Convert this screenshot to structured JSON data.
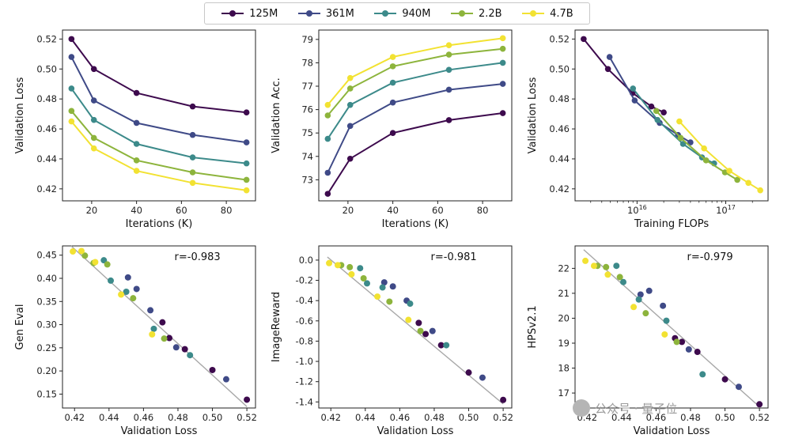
{
  "legend": {
    "entries": [
      {
        "label": "125M",
        "color": "#3d0a4d"
      },
      {
        "label": "361M",
        "color": "#3f4a87"
      },
      {
        "label": "940M",
        "color": "#3c8a8a"
      },
      {
        "label": "2.2B",
        "color": "#8db43c"
      },
      {
        "label": "4.7B",
        "color": "#f2e232"
      }
    ]
  },
  "watermark": {
    "text": "公众号 · 量子位"
  },
  "chart_data": [
    {
      "id": "loss-vs-iter",
      "type": "line",
      "xlabel": "Iterations (K)",
      "ylabel": "Validation Loss",
      "xlim": [
        7,
        93
      ],
      "ylim": [
        0.412,
        0.526
      ],
      "xticks": [
        20,
        40,
        60,
        80
      ],
      "yticks": [
        0.42,
        0.44,
        0.46,
        0.48,
        0.5,
        0.52
      ],
      "yformat": "2",
      "x": [
        11,
        21,
        40,
        65,
        89
      ],
      "series": [
        {
          "name": "125M",
          "values": [
            0.52,
            0.5,
            0.484,
            0.475,
            0.471
          ]
        },
        {
          "name": "361M",
          "values": [
            0.508,
            0.479,
            0.464,
            0.456,
            0.451
          ]
        },
        {
          "name": "940M",
          "values": [
            0.487,
            0.466,
            0.45,
            0.441,
            0.437
          ]
        },
        {
          "name": "2.2B",
          "values": [
            0.472,
            0.454,
            0.439,
            0.431,
            0.426
          ]
        },
        {
          "name": "4.7B",
          "values": [
            0.465,
            0.447,
            0.432,
            0.424,
            0.419
          ]
        }
      ]
    },
    {
      "id": "acc-vs-iter",
      "type": "line",
      "xlabel": "Iterations (K)",
      "ylabel": "Validation Acc.",
      "xlim": [
        7,
        93
      ],
      "ylim": [
        72.1,
        79.4
      ],
      "xticks": [
        20,
        40,
        60,
        80
      ],
      "yticks": [
        73,
        74,
        75,
        76,
        77,
        78,
        79
      ],
      "yformat": "0",
      "x": [
        11,
        21,
        40,
        65,
        89
      ],
      "series": [
        {
          "name": "125M",
          "values": [
            72.4,
            73.9,
            75.0,
            75.55,
            75.85
          ]
        },
        {
          "name": "361M",
          "values": [
            73.3,
            75.3,
            76.3,
            76.85,
            77.1
          ]
        },
        {
          "name": "940M",
          "values": [
            74.75,
            76.2,
            77.15,
            77.7,
            78.0
          ]
        },
        {
          "name": "2.2B",
          "values": [
            75.75,
            76.9,
            77.85,
            78.35,
            78.6
          ]
        },
        {
          "name": "4.7B",
          "values": [
            76.2,
            77.35,
            78.25,
            78.75,
            79.05
          ]
        }
      ]
    },
    {
      "id": "loss-vs-flops",
      "type": "line",
      "xscale": "log",
      "xlabel": "Training FLOPs",
      "ylabel": "Validation Loss",
      "xlim": [
        2000000000000000.0,
        3e+17
      ],
      "ylim": [
        0.412,
        0.526
      ],
      "xticks_log": [
        16,
        17
      ],
      "yticks": [
        0.42,
        0.44,
        0.46,
        0.48,
        0.5,
        0.52
      ],
      "yformat": "2",
      "series": [
        {
          "name": "125M",
          "x": [
            2500000000000000.0,
            4700000000000000.0,
            8900000000000000.0,
            1.45e+16,
            2e+16
          ],
          "values": [
            0.52,
            0.5,
            0.484,
            0.475,
            0.471
          ]
        },
        {
          "name": "361M",
          "x": [
            4900000000000000.0,
            9400000000000000.0,
            1.8e+16,
            2.9e+16,
            4e+16
          ],
          "values": [
            0.508,
            0.479,
            0.464,
            0.456,
            0.451
          ]
        },
        {
          "name": "940M",
          "x": [
            9000000000000000.0,
            1.7e+16,
            3.3e+16,
            5.4e+16,
            7.4e+16
          ],
          "values": [
            0.487,
            0.466,
            0.45,
            0.441,
            0.437
          ]
        },
        {
          "name": "2.2B",
          "x": [
            1.65e+16,
            3.1e+16,
            6e+16,
            9.8e+16,
            1.35e+17
          ],
          "values": [
            0.472,
            0.454,
            0.439,
            0.431,
            0.426
          ]
        },
        {
          "name": "4.7B",
          "x": [
            3e+16,
            5.7e+16,
            1.1e+17,
            1.8e+17,
            2.45e+17
          ],
          "values": [
            0.465,
            0.447,
            0.432,
            0.424,
            0.419
          ]
        }
      ]
    },
    {
      "id": "geneval-vs-loss",
      "type": "scatter",
      "xlabel": "Validation Loss",
      "ylabel": "Gen Eval",
      "annotation": "r=-0.983",
      "xlim": [
        0.413,
        0.525
      ],
      "ylim": [
        0.12,
        0.47
      ],
      "xticks": [
        0.42,
        0.44,
        0.46,
        0.48,
        0.5,
        0.52
      ],
      "yticks": [
        0.15,
        0.2,
        0.25,
        0.3,
        0.35,
        0.4,
        0.45
      ],
      "yformat": "2",
      "fit": {
        "x": [
          0.418,
          0.52
        ],
        "y": [
          0.47,
          0.123
        ]
      },
      "series": [
        {
          "name": "125M",
          "x": [
            0.52,
            0.5,
            0.484,
            0.475,
            0.471
          ],
          "values": [
            0.138,
            0.202,
            0.247,
            0.271,
            0.305
          ]
        },
        {
          "name": "361M",
          "x": [
            0.508,
            0.479,
            0.464,
            0.456,
            0.451
          ],
          "values": [
            0.182,
            0.251,
            0.331,
            0.377,
            0.402
          ]
        },
        {
          "name": "940M",
          "x": [
            0.487,
            0.466,
            0.45,
            0.441,
            0.437
          ],
          "values": [
            0.234,
            0.291,
            0.371,
            0.395,
            0.439
          ]
        },
        {
          "name": "2.2B",
          "x": [
            0.472,
            0.454,
            0.439,
            0.431,
            0.426
          ],
          "values": [
            0.27,
            0.357,
            0.43,
            0.433,
            0.449
          ]
        },
        {
          "name": "4.7B",
          "x": [
            0.465,
            0.447,
            0.432,
            0.424,
            0.419
          ],
          "values": [
            0.279,
            0.365,
            0.435,
            0.459,
            0.458
          ]
        }
      ]
    },
    {
      "id": "imagereward-vs-loss",
      "type": "scatter",
      "xlabel": "Validation Loss",
      "ylabel": "ImageReward",
      "annotation": "r=-0.981",
      "xlim": [
        0.413,
        0.525
      ],
      "ylim": [
        -1.46,
        0.14
      ],
      "xticks": [
        0.42,
        0.44,
        0.46,
        0.48,
        0.5,
        0.52
      ],
      "yticks": [
        -1.4,
        -1.2,
        -1.0,
        -0.8,
        -0.6,
        -0.4,
        -0.2,
        0.0
      ],
      "yformat": "1",
      "fit": {
        "x": [
          0.418,
          0.52
        ],
        "y": [
          0.03,
          -1.42
        ]
      },
      "series": [
        {
          "name": "125M",
          "x": [
            0.52,
            0.5,
            0.484,
            0.475,
            0.471
          ],
          "values": [
            -1.38,
            -1.11,
            -0.84,
            -0.73,
            -0.62
          ]
        },
        {
          "name": "361M",
          "x": [
            0.508,
            0.479,
            0.464,
            0.456,
            0.451
          ],
          "values": [
            -1.16,
            -0.7,
            -0.4,
            -0.26,
            -0.22
          ]
        },
        {
          "name": "940M",
          "x": [
            0.487,
            0.466,
            0.45,
            0.441,
            0.437
          ],
          "values": [
            -0.84,
            -0.43,
            -0.27,
            -0.23,
            -0.08
          ]
        },
        {
          "name": "2.2B",
          "x": [
            0.472,
            0.454,
            0.439,
            0.431,
            0.426
          ],
          "values": [
            -0.7,
            -0.41,
            -0.18,
            -0.07,
            -0.05
          ]
        },
        {
          "name": "4.7B",
          "x": [
            0.465,
            0.447,
            0.432,
            0.424,
            0.419
          ],
          "values": [
            -0.59,
            -0.36,
            -0.14,
            -0.05,
            -0.03
          ]
        }
      ]
    },
    {
      "id": "hpsv21-vs-loss",
      "type": "scatter",
      "xlabel": "Validation Loss",
      "ylabel": "HPSv2.1",
      "annotation": "r=-0.979",
      "xlim": [
        0.413,
        0.525
      ],
      "ylim": [
        16.4,
        22.9
      ],
      "xticks": [
        0.42,
        0.44,
        0.46,
        0.48,
        0.5,
        0.52
      ],
      "yticks": [
        17,
        18,
        19,
        20,
        21,
        22
      ],
      "yformat": "0",
      "fit": {
        "x": [
          0.418,
          0.52
        ],
        "y": [
          22.75,
          16.45
        ]
      },
      "series": [
        {
          "name": "125M",
          "x": [
            0.52,
            0.5,
            0.484,
            0.475,
            0.471
          ],
          "values": [
            16.55,
            17.55,
            18.65,
            19.05,
            19.2
          ]
        },
        {
          "name": "361M",
          "x": [
            0.508,
            0.479,
            0.464,
            0.456,
            0.451
          ],
          "values": [
            17.25,
            18.75,
            20.5,
            21.1,
            20.95
          ]
        },
        {
          "name": "940M",
          "x": [
            0.487,
            0.466,
            0.45,
            0.441,
            0.437
          ],
          "values": [
            17.75,
            19.9,
            20.75,
            21.45,
            22.1
          ]
        },
        {
          "name": "2.2B",
          "x": [
            0.472,
            0.454,
            0.439,
            0.431,
            0.426
          ],
          "values": [
            19.05,
            20.2,
            21.65,
            22.05,
            22.1
          ]
        },
        {
          "name": "4.7B",
          "x": [
            0.465,
            0.447,
            0.432,
            0.424,
            0.419
          ],
          "values": [
            19.35,
            20.45,
            21.75,
            22.1,
            22.3
          ]
        }
      ]
    }
  ]
}
